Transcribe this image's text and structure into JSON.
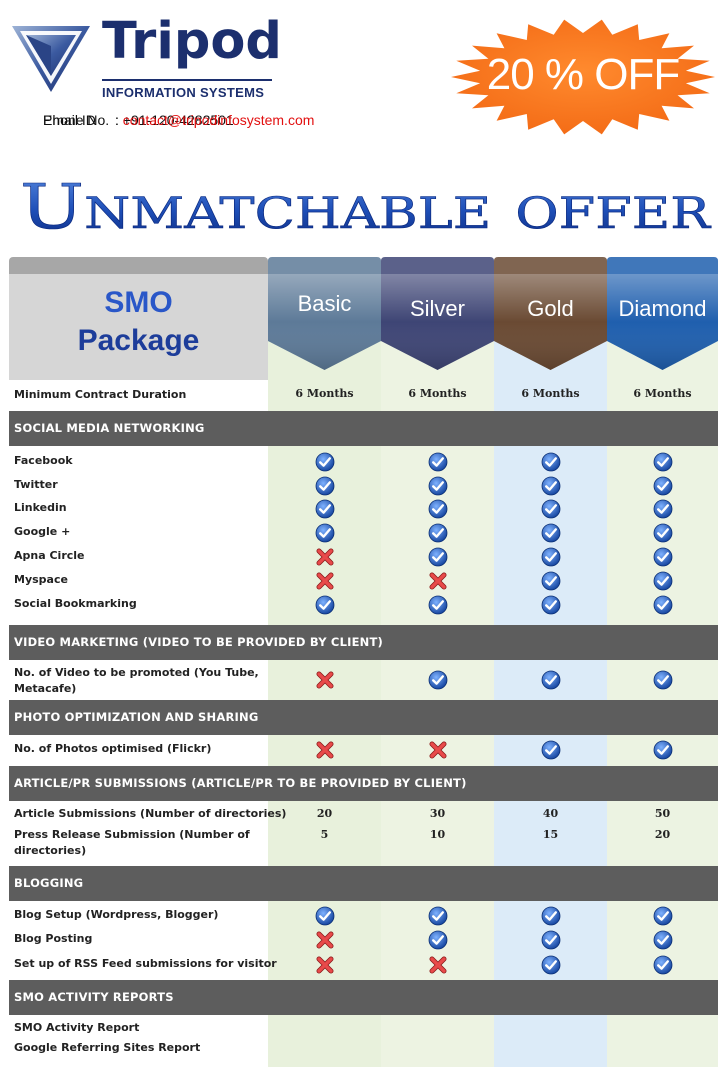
{
  "brand": {
    "name": "Tripod",
    "subtitle": "INFORMATION SYSTEMS",
    "colors": {
      "navy": "#1c2f6e",
      "accent_orange": "#f36a15",
      "link_red": "#e21010"
    }
  },
  "contact": {
    "phone_label": "Phone No.",
    "phone_value": ": +91-120-4282501",
    "email_label": "Email ID",
    "email_sep": ": ",
    "email_value": "contact@tripodinfosystem.com"
  },
  "promo": {
    "text": "20 % OFF",
    "shape": "starburst",
    "color": "#f36a15"
  },
  "headline": "Unmatchable offer",
  "package": {
    "title_line1": "SMO",
    "title_line2": "Package",
    "plans": [
      {
        "name": "Basic",
        "color": "#5d7a98"
      },
      {
        "name": "Silver",
        "color": "#3e4575"
      },
      {
        "name": "Gold",
        "color": "#6a4a33"
      },
      {
        "name": "Diamond",
        "color": "#1f5fae"
      }
    ],
    "min_contract": {
      "label": "Minimum Contract Duration",
      "values": [
        "6 Months",
        "6 Months",
        "6 Months",
        "6 Months"
      ]
    },
    "sections": [
      {
        "title": "SOCIAL MEDIA NETWORKING",
        "rows": [
          {
            "label": "Facebook",
            "values": [
              "check",
              "check",
              "check",
              "check"
            ]
          },
          {
            "label": "Twitter",
            "values": [
              "check",
              "check",
              "check",
              "check"
            ]
          },
          {
            "label": "Linkedin",
            "values": [
              "check",
              "check",
              "check",
              "check"
            ]
          },
          {
            "label": "Google +",
            "values": [
              "check",
              "check",
              "check",
              "check"
            ]
          },
          {
            "label": "Apna Circle",
            "values": [
              "cross",
              "check",
              "check",
              "check"
            ]
          },
          {
            "label": "Myspace",
            "values": [
              "cross",
              "cross",
              "check",
              "check"
            ]
          },
          {
            "label": "Social Bookmarking",
            "values": [
              "check",
              "check",
              "check",
              "check"
            ]
          }
        ]
      },
      {
        "title": "VIDEO MARKETING (VIDEO TO BE PROVIDED BY CLIENT)",
        "rows": [
          {
            "label": "No. of Video to be promoted (You Tube,",
            "label2": "Metacafe)",
            "values": [
              "cross",
              "check",
              "check",
              "check"
            ]
          }
        ]
      },
      {
        "title": "PHOTO OPTIMIZATION AND SHARING",
        "rows": [
          {
            "label": "No. of Photos optimised (Flickr)",
            "values": [
              "cross",
              "cross",
              "check",
              "check"
            ]
          }
        ]
      },
      {
        "title": "ARTICLE/PR SUBMISSIONS (ARTICLE/PR TO BE PROVIDED BY CLIENT)",
        "rows": [
          {
            "label": "Article Submissions (Number of directories)",
            "values": [
              "20",
              "30",
              "40",
              "50"
            ]
          },
          {
            "label": "Press Release Submission (Number of",
            "label2": "directories)",
            "values": [
              "5",
              "10",
              "15",
              "20"
            ]
          }
        ]
      },
      {
        "title": "BLOGGING",
        "rows": [
          {
            "label": "Blog Setup (Wordpress, Blogger)",
            "values": [
              "check",
              "check",
              "check",
              "check"
            ]
          },
          {
            "label": "Blog Posting",
            "values": [
              "cross",
              "check",
              "check",
              "check"
            ]
          },
          {
            "label": "Set up of RSS Feed submissions for visitor",
            "values": [
              "cross",
              "cross",
              "check",
              "check"
            ]
          }
        ]
      },
      {
        "title": "SMO ACTIVITY REPORTS",
        "rows": [
          {
            "label": "SMO Activity Report",
            "values": [
              "",
              "",
              "",
              ""
            ]
          },
          {
            "label": "Google Referring Sites Report",
            "values": [
              "",
              "",
              "",
              ""
            ]
          }
        ]
      }
    ]
  }
}
